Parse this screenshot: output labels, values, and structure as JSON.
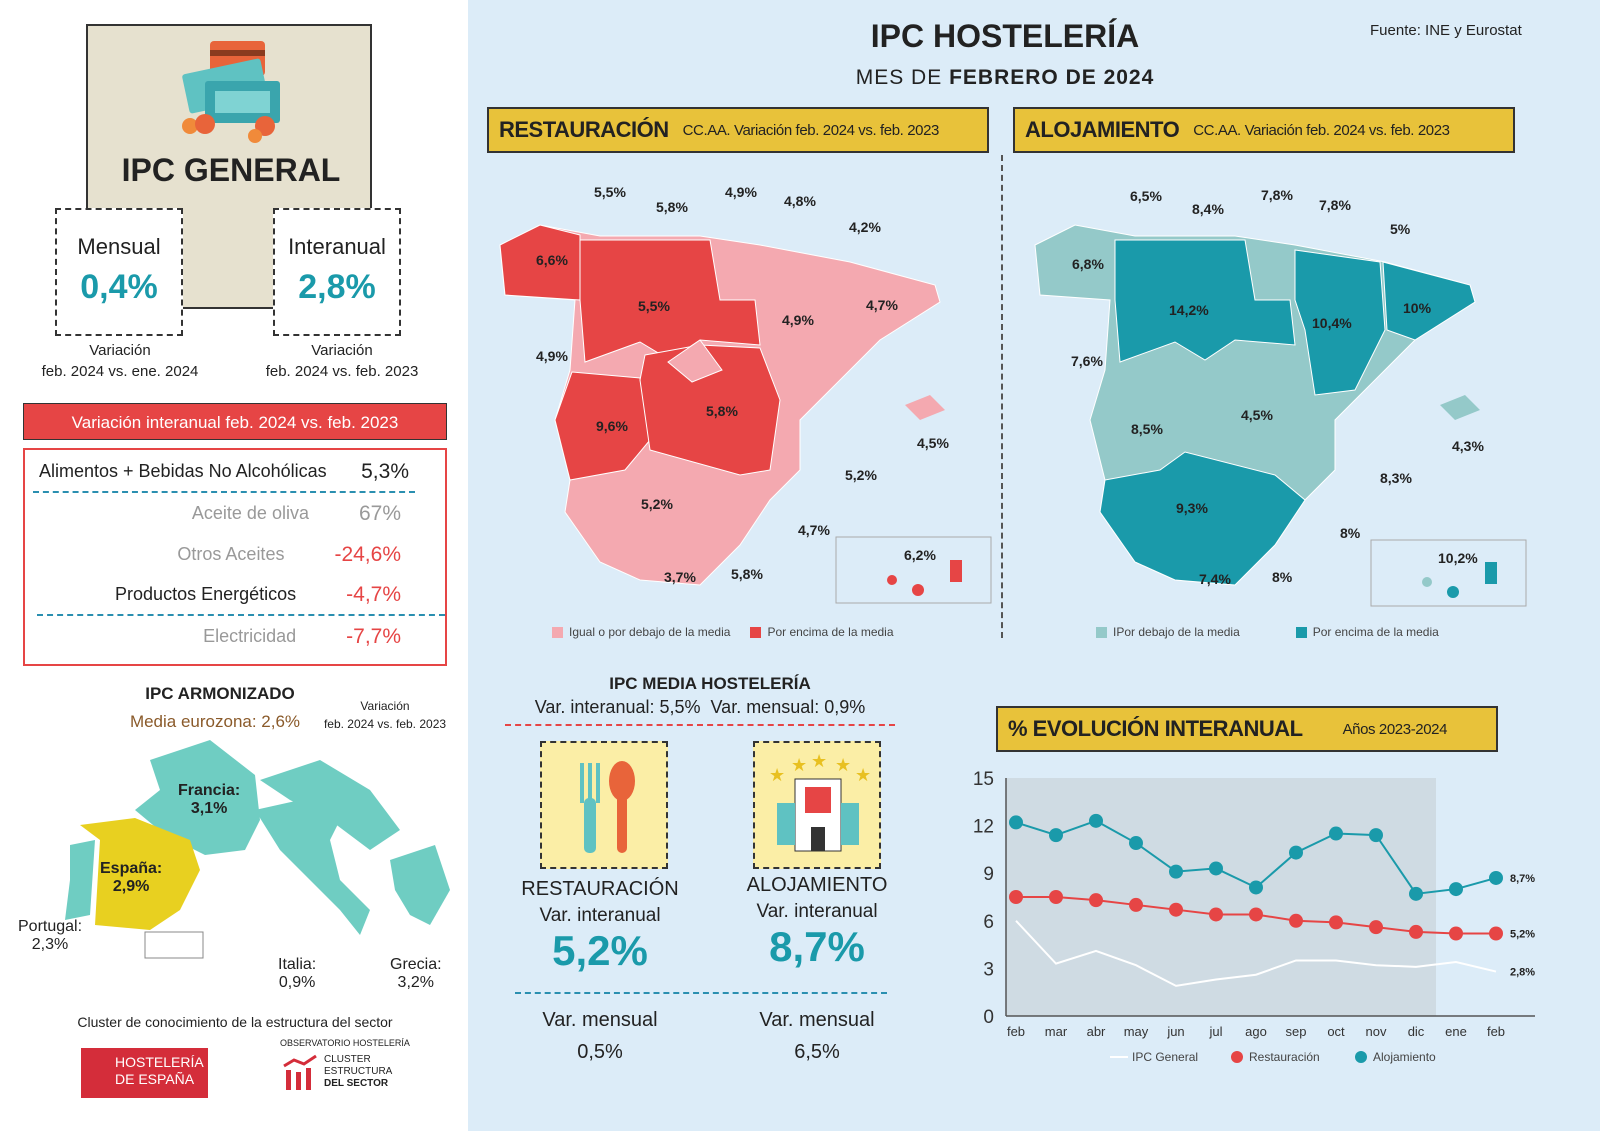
{
  "left": {
    "ipc_general_title": "IPC GENERAL",
    "mensual": {
      "label": "Mensual",
      "value": "0,4%",
      "caption1": "Variación",
      "caption2": "feb. 2024 vs. ene. 2024"
    },
    "interanual": {
      "label": "Interanual",
      "value": "2,8%",
      "caption1": "Variación",
      "caption2": "feb. 2024 vs. feb. 2023"
    },
    "variation_header": "Variación interanual feb. 2024 vs. feb. 2023",
    "items": [
      {
        "label": "Alimentos + Bebidas No Alcohólicas",
        "value": "5,3%"
      },
      {
        "label": "Aceite de oliva",
        "value": "67%"
      },
      {
        "label": "Otros Aceites",
        "value": "-24,6%"
      },
      {
        "label": "Productos Energéticos",
        "value": "-4,7%"
      },
      {
        "label": "Electricidad",
        "value": "-7,7%"
      }
    ],
    "armonizado": {
      "title": "IPC ARMONIZADO",
      "media": "Media eurozona: 2,6%",
      "var1": "Variación",
      "var2": "feb. 2024 vs. feb. 2023",
      "countries": [
        {
          "name": "Francia:",
          "value": "3,1%"
        },
        {
          "name": "España:",
          "value": "2,9%"
        },
        {
          "name": "Portugal:",
          "value": "2,3%"
        },
        {
          "name": "Italia:",
          "value": "0,9%"
        },
        {
          "name": "Grecia:",
          "value": "3,2%"
        }
      ]
    },
    "footer": {
      "cluster": "Cluster de conocimiento de la estructura del sector",
      "logo1a": "HOSTELERÍA",
      "logo1b": "DE ESPAÑA",
      "obs": "OBSERVATORIO HOSTELERÍA",
      "logo2a": "CLUSTER",
      "logo2b": "ESTRUCTURA",
      "logo2c": "DEL SECTOR"
    }
  },
  "header": {
    "title": "IPC HOSTELERÍA",
    "subtitle_pre": "MES DE ",
    "subtitle_bold": "FEBRERO DE 2024",
    "source": "Fuente: INE y Eurostat"
  },
  "restauracion_map": {
    "title": "RESTAURACIÓN",
    "subtitle": "CC.AA. Variación feb. 2024 vs. feb. 2023",
    "labels": [
      "5,5%",
      "5,8%",
      "4,9%",
      "4,8%",
      "4,2%",
      "6,6%",
      "5,5%",
      "4,9%",
      "4,7%",
      "4,9%",
      "9,6%",
      "5,8%",
      "4,5%",
      "5,2%",
      "5,2%",
      "4,7%",
      "3,7%",
      "5,8%",
      "6,2%"
    ],
    "legend": [
      "Igual o por debajo de la media",
      "Por encima de la media"
    ],
    "colors": {
      "low": "#f4a9b0",
      "high": "#e64545"
    }
  },
  "alojamiento_map": {
    "title": "ALOJAMIENTO",
    "subtitle": "CC.AA. Variación feb. 2024 vs. feb. 2023",
    "labels": [
      "6,5%",
      "8,4%",
      "7,8%",
      "7,8%",
      "5%",
      "6,8%",
      "14,2%",
      "10,4%",
      "10%",
      "7,6%",
      "8,5%",
      "4,5%",
      "4,3%",
      "8,3%",
      "9,3%",
      "8%",
      "7,4%",
      "8%",
      "10,2%"
    ],
    "legend": [
      "IPor debajo de la media",
      "Por encima de la media"
    ],
    "colors": {
      "low": "#94c9c9",
      "high": "#1a9aaa"
    }
  },
  "media": {
    "title": "IPC MEDIA HOSTELERÍA",
    "line": "Var. interanual: 5,5%  Var. mensual: 0,9%",
    "rest": {
      "title": "RESTAURACIÓN",
      "inter_label": "Var. interanual",
      "inter": "5,2%",
      "mens_label": "Var. mensual",
      "mens": "0,5%"
    },
    "aloj": {
      "title": "ALOJAMIENTO",
      "inter_label": "Var. interanual",
      "inter": "8,7%",
      "mens_label": "Var. mensual",
      "mens": "6,5%"
    }
  },
  "evolucion": {
    "title": "% EVOLUCIÓN INTERANUAL",
    "subtitle": "Años 2023-2024"
  },
  "chart_data": {
    "type": "line",
    "title": "% EVOLUCIÓN INTERANUAL",
    "subtitle": "Años 2023-2024",
    "categories": [
      "feb",
      "mar",
      "abr",
      "may",
      "jun",
      "jul",
      "ago",
      "sep",
      "oct",
      "nov",
      "dic",
      "ene",
      "feb"
    ],
    "ylim": [
      0,
      15
    ],
    "yticks": [
      "0",
      "3",
      "6",
      "9",
      "12",
      "15"
    ],
    "series": [
      {
        "name": "IPC General",
        "color": "#ffffff",
        "values": [
          6.0,
          3.3,
          4.1,
          3.2,
          1.9,
          2.3,
          2.6,
          3.5,
          3.5,
          3.2,
          3.1,
          3.4,
          2.8
        ],
        "end_label": "2,8%"
      },
      {
        "name": "Restauración",
        "color": "#e64545",
        "values": [
          7.5,
          7.5,
          7.3,
          7.0,
          6.7,
          6.4,
          6.4,
          6.0,
          5.9,
          5.6,
          5.3,
          5.2,
          5.2
        ],
        "end_label": "5,2%"
      },
      {
        "name": "Alojamiento",
        "color": "#1a9aaa",
        "values": [
          12.2,
          11.4,
          12.3,
          10.9,
          9.1,
          9.3,
          8.1,
          10.3,
          11.5,
          11.4,
          7.7,
          8.0,
          8.7
        ],
        "end_label": "8,7%"
      }
    ]
  }
}
